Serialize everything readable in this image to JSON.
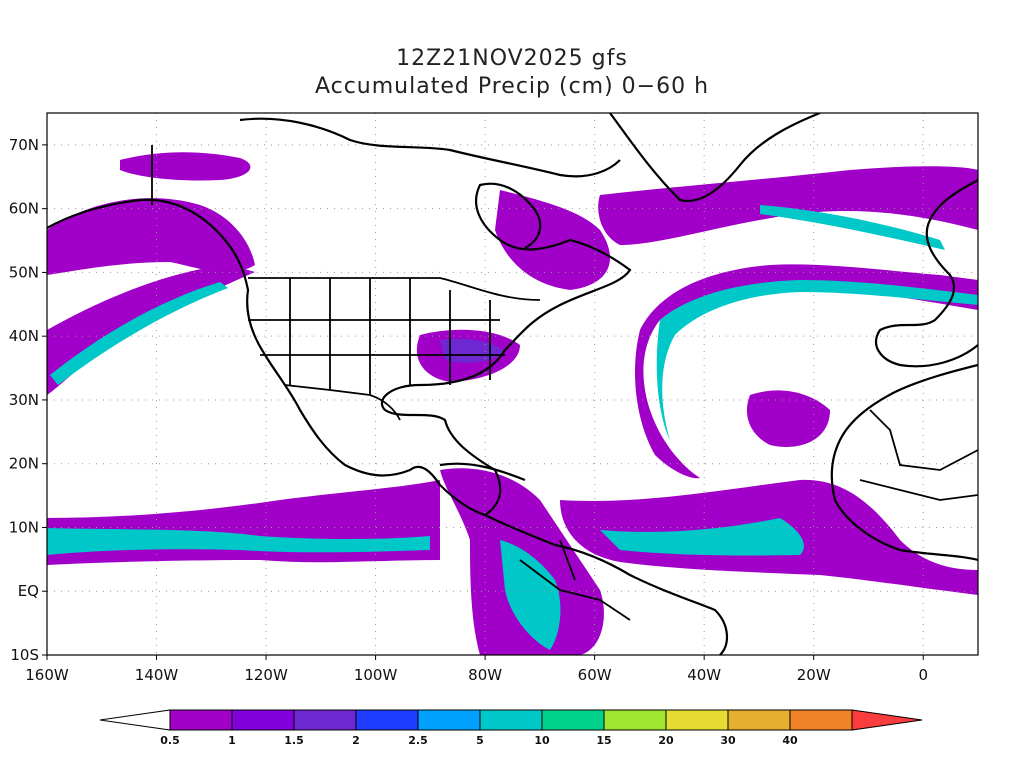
{
  "title": {
    "line1": "12Z21NOV2025 gfs",
    "line2": "Accumulated Precip (cm) 0−60 h"
  },
  "map": {
    "projection": "lat-lon",
    "lon_range": [
      -160,
      10
    ],
    "lat_range": [
      -10,
      75
    ],
    "lon_ticks": [
      "160W",
      "140W",
      "120W",
      "100W",
      "80W",
      "60W",
      "40W",
      "20W",
      "0"
    ],
    "lat_ticks": [
      "10S",
      "EQ",
      "10N",
      "20N",
      "30N",
      "40N",
      "50N",
      "60N",
      "70N"
    ],
    "grid": "dotted"
  },
  "colorbar": {
    "labels": [
      "0.5",
      "1",
      "1.5",
      "2",
      "2.5",
      "5",
      "10",
      "15",
      "20",
      "30",
      "40"
    ],
    "colors": [
      "#ffffff",
      "#a000c8",
      "#8200dc",
      "#6e28d2",
      "#1e3cff",
      "#00a0ff",
      "#00c8c8",
      "#00d28c",
      "#a0e632",
      "#e6dc32",
      "#e6af2d",
      "#f08228",
      "#fa3c3c"
    ]
  }
}
